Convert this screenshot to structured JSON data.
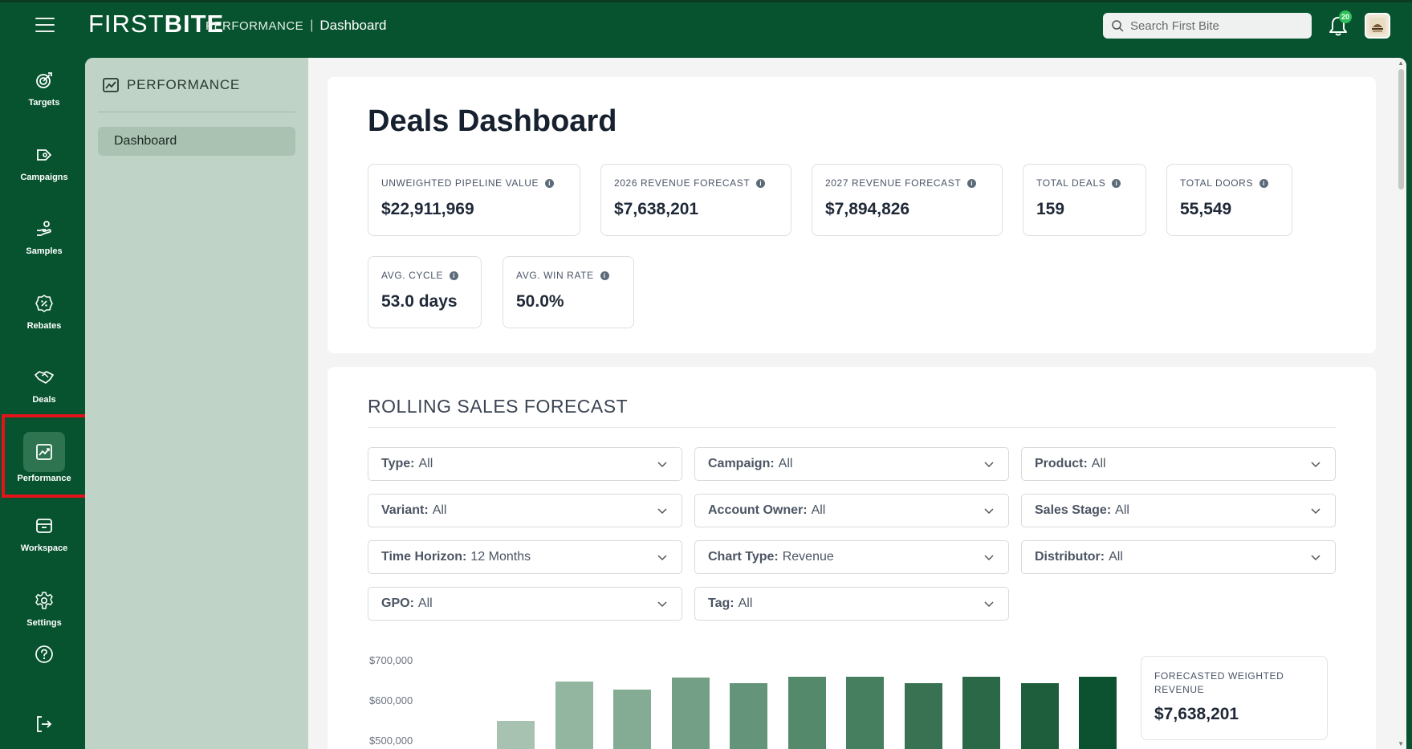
{
  "header": {
    "logo_thin": "FIRST",
    "logo_bold": "BITE",
    "breadcrumb_section": "PERFORMANCE",
    "breadcrumb_sep": "|",
    "breadcrumb_page": "Dashboard",
    "search_placeholder": "Search First Bite",
    "notification_count": "20",
    "icons": {
      "menu": "hamburger-icon",
      "search": "search-icon",
      "bell": "bell-icon"
    }
  },
  "rail": {
    "items": [
      {
        "label": "Targets",
        "icon": "target-icon"
      },
      {
        "label": "Campaigns",
        "icon": "megaphone-icon"
      },
      {
        "label": "Samples",
        "icon": "hand-sample-icon"
      },
      {
        "label": "Rebates",
        "icon": "percent-badge-icon"
      },
      {
        "label": "Deals",
        "icon": "handshake-icon"
      },
      {
        "label": "Performance",
        "icon": "chart-icon",
        "active": true
      },
      {
        "label": "Workspace",
        "icon": "archive-icon"
      },
      {
        "label": "Settings",
        "icon": "gear-icon"
      }
    ],
    "help_icon": "help-icon",
    "logout_icon": "logout-icon"
  },
  "subnav": {
    "title": "PERFORMANCE",
    "items": [
      {
        "label": "Dashboard",
        "active": true
      }
    ]
  },
  "dashboard": {
    "title": "Deals Dashboard",
    "stats": [
      {
        "label": "UNWEIGHTED PIPELINE VALUE",
        "value": "$22,911,969"
      },
      {
        "label": "2026 REVENUE FORECAST",
        "value": "$7,638,201"
      },
      {
        "label": "2027 REVENUE FORECAST",
        "value": "$7,894,826"
      },
      {
        "label": "TOTAL DEALS",
        "value": "159"
      },
      {
        "label": "TOTAL DOORS",
        "value": "55,549"
      },
      {
        "label": "AVG. CYCLE",
        "value": "53.0 days"
      },
      {
        "label": "AVG. WIN RATE",
        "value": "50.0%"
      }
    ]
  },
  "forecast": {
    "title": "ROLLING SALES FORECAST",
    "filters": [
      {
        "key": "Type:",
        "value": "All"
      },
      {
        "key": "Campaign:",
        "value": "All"
      },
      {
        "key": "Product:",
        "value": "All"
      },
      {
        "key": "Variant:",
        "value": "All"
      },
      {
        "key": "Account Owner:",
        "value": "All"
      },
      {
        "key": "Sales Stage:",
        "value": "All"
      },
      {
        "key": "Time Horizon:",
        "value": "12 Months"
      },
      {
        "key": "Chart Type:",
        "value": "Revenue"
      },
      {
        "key": "Distributor:",
        "value": "All"
      },
      {
        "key": "GPO:",
        "value": "All"
      },
      {
        "key": "Tag:",
        "value": "All"
      }
    ],
    "summary_label": "FORECASTED WEIGHTED REVENUE",
    "summary_value": "$7,638,201"
  },
  "chart_data": {
    "type": "bar",
    "y_ticks": [
      "$700,000",
      "$600,000",
      "$500,000"
    ],
    "ylim": [
      500000,
      700000
    ],
    "values": [
      550000,
      648000,
      628000,
      658000,
      644000,
      660000,
      660000,
      644000,
      660000,
      644000,
      660000
    ],
    "colors": [
      "#a7c2b0",
      "#93b6a0",
      "#84ac94",
      "#729f85",
      "#649479",
      "#55896c",
      "#467e60",
      "#387253",
      "#2b6847",
      "#1f5e3c",
      "#0c5231"
    ]
  }
}
